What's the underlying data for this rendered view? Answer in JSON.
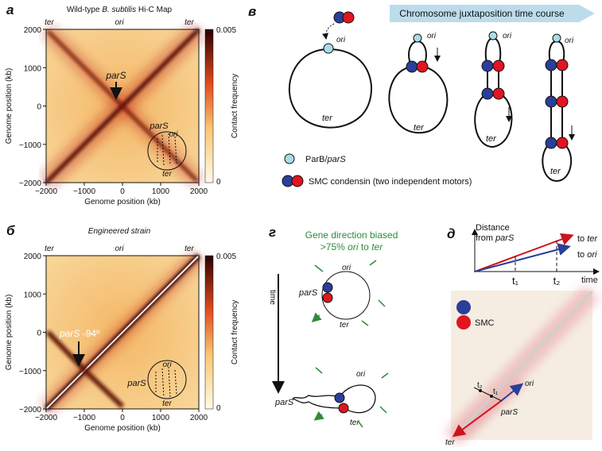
{
  "panels": {
    "a": {
      "letter": "а",
      "title": {
        "prefix": "Wild-type ",
        "italic": "B. subtilis",
        "suffix": " Hi-C Map"
      },
      "top_labels": [
        "ter",
        "ori",
        "ter"
      ],
      "xticks": [
        "−2000",
        "−1000",
        "0",
        "1000",
        "2000"
      ],
      "yticks": [
        "2000",
        "1000",
        "0",
        "−1000",
        "−2000"
      ],
      "xlabel": "Genome position (kb)",
      "ylabel": "Genome position (kb)",
      "colorbar": {
        "label": "Contact frequency",
        "max": "0.005",
        "min": "0"
      },
      "pars_label": "parS",
      "inset": {
        "pars": "parS",
        "ori": "ori",
        "ter": "ter"
      }
    },
    "b": {
      "letter": "в",
      "banner": "Chromosome juxtaposition time course",
      "ori": "ori",
      "ter": "ter",
      "legend": {
        "parb_prefix": "ParB/",
        "parb_italic": "parS",
        "smc": "SMC condensin (two independent motors)"
      }
    },
    "c": {
      "letter": "б",
      "title": "Engineered strain",
      "top_labels": [
        "ter",
        "ori",
        "ter"
      ],
      "xticks": [
        "−2000",
        "−1000",
        "0",
        "1000",
        "2000"
      ],
      "yticks": [
        "2000",
        "1000",
        "0",
        "−1000",
        "−2000"
      ],
      "xlabel": "Genome position (kb)",
      "ylabel": "Genome position (kb)",
      "colorbar": {
        "label": "Contact frequency",
        "max": "0.005",
        "min": "0"
      },
      "pars_label": {
        "italic": "parS",
        "suffix": " -94º"
      },
      "inset": {
        "pars": "parS",
        "ori": "ori",
        "ter": "ter"
      }
    },
    "d": {
      "letter": "г",
      "title_line1": "Gene direction biased",
      "title_line2": {
        "prefix": ">75% ",
        "ori": "ori",
        "mid": " to ",
        "ter": "ter"
      },
      "time": "time",
      "ori": "ori",
      "ter": "ter",
      "pars": "parS"
    },
    "e": {
      "letter": "д",
      "ylabel_line1": "Distance",
      "ylabel_line2": {
        "prefix": "from ",
        "italic": "parS"
      },
      "to_ter": {
        "prefix": "to ",
        "italic": "ter"
      },
      "to_ori": {
        "prefix": "to ",
        "italic": "ori"
      },
      "t1": "t₁",
      "t2": "t₂",
      "xlabel": "time",
      "smc": "SMC",
      "ori": "ori",
      "pars": "parS",
      "ter": "ter",
      "t2_map": "t₂",
      "t1_map": "t₁"
    }
  }
}
